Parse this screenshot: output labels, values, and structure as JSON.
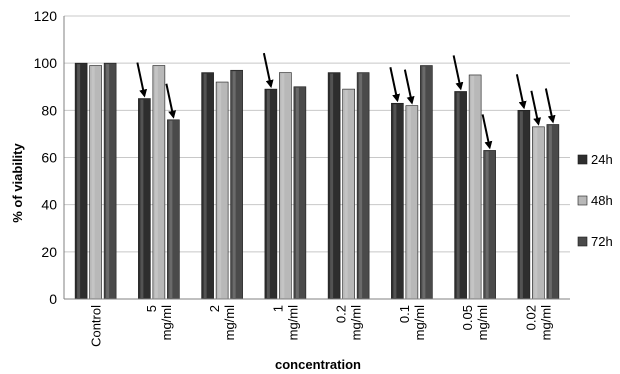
{
  "chart_data": {
    "type": "bar",
    "title": "",
    "xlabel": "concentration",
    "ylabel": "% of viability",
    "ylim": [
      0,
      120
    ],
    "yticks": [
      0,
      20,
      40,
      60,
      80,
      100,
      120
    ],
    "grid": true,
    "legend_position": "right",
    "categories": [
      {
        "line1": "Control",
        "line2": ""
      },
      {
        "line1": "5",
        "line2": "mg/ml"
      },
      {
        "line1": "2",
        "line2": "mg/ml"
      },
      {
        "line1": "1",
        "line2": "mg/ml"
      },
      {
        "line1": "0.2",
        "line2": "mg/ml"
      },
      {
        "line1": "0.1",
        "line2": "mg/ml"
      },
      {
        "line1": "0.05",
        "line2": "mg/ml"
      },
      {
        "line1": "0.02",
        "line2": "mg/ml"
      }
    ],
    "series": [
      {
        "name": "24h",
        "color": "#2e2e2e",
        "values": [
          100,
          85,
          96,
          89,
          96,
          83,
          88,
          80
        ]
      },
      {
        "name": "48h",
        "color": "#b8b8b8",
        "values": [
          99,
          99,
          92,
          96,
          89,
          82,
          95,
          73
        ]
      },
      {
        "name": "72h",
        "color": "#4a4a4a",
        "values": [
          100,
          76,
          97,
          90,
          96,
          99,
          63,
          74
        ]
      }
    ],
    "annotations": {
      "marker": "arrow",
      "arrows": [
        {
          "category": 1,
          "series": 0
        },
        {
          "category": 1,
          "series": 2
        },
        {
          "category": 3,
          "series": 0
        },
        {
          "category": 5,
          "series": 0
        },
        {
          "category": 5,
          "series": 1
        },
        {
          "category": 6,
          "series": 0
        },
        {
          "category": 6,
          "series": 2
        },
        {
          "category": 7,
          "series": 0
        },
        {
          "category": 7,
          "series": 1
        },
        {
          "category": 7,
          "series": 2
        }
      ]
    }
  }
}
